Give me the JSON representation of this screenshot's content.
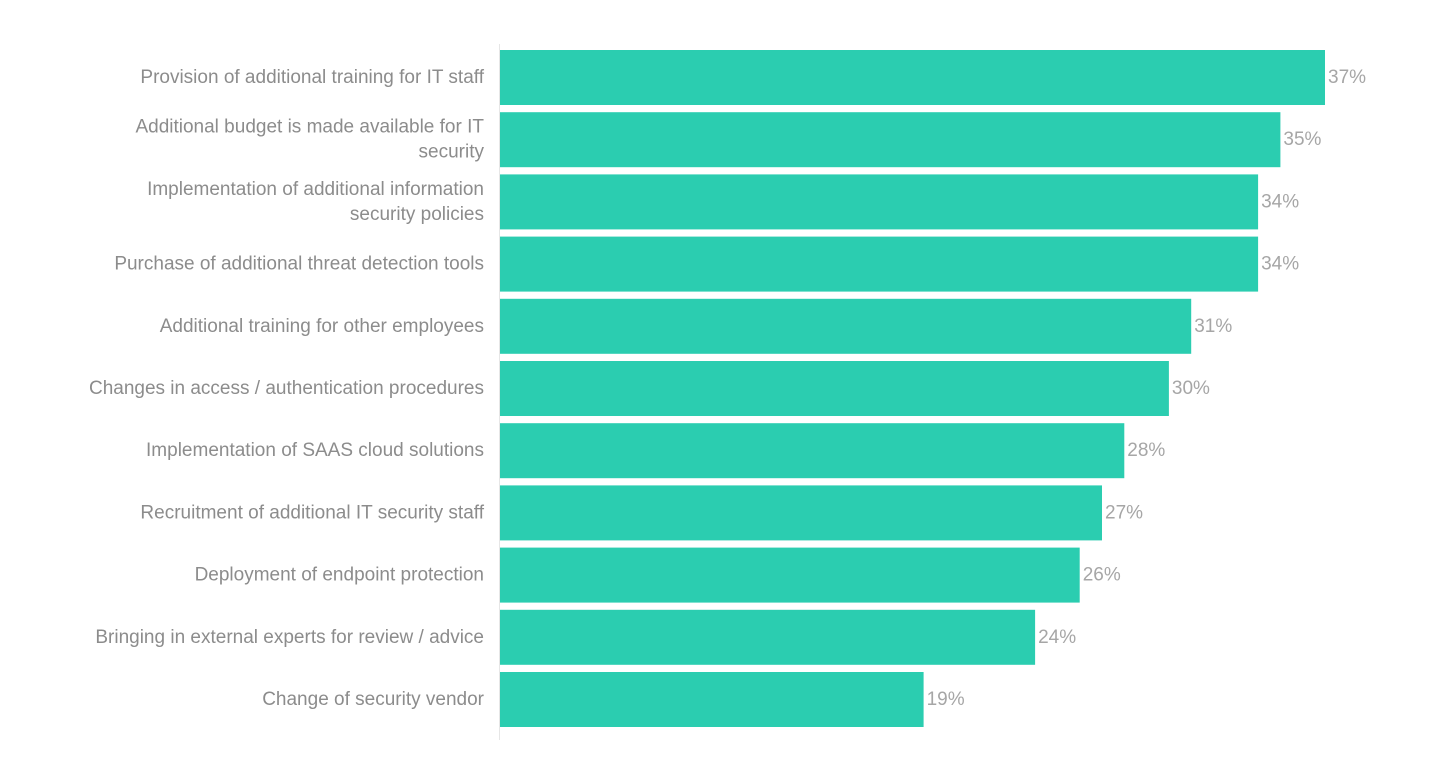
{
  "chart_data": {
    "type": "bar",
    "orientation": "horizontal",
    "title": "",
    "xlabel": "",
    "ylabel": "",
    "xlim": [
      0,
      37
    ],
    "grid": false,
    "legend": "none",
    "bar_color": "#2bcdb0",
    "label_color": "#8c8c8c",
    "value_label_color": "#a6a6a6",
    "categories": [
      "Provision of additional training for IT staff",
      "Additional budget is made available for IT security",
      "Implementation of additional information security policies",
      "Purchase of additional threat detection tools",
      "Additional training for other employees",
      "Changes in access / authentication procedures",
      "Implementation of SAAS cloud solutions",
      "Recruitment of additional IT security staff",
      "Deployment of endpoint protection",
      "Bringing in external experts for review / advice",
      "Change of security vendor"
    ],
    "values": [
      37,
      35,
      34,
      34,
      31,
      30,
      28,
      27,
      26,
      24,
      19
    ],
    "value_labels": [
      "37%",
      "35%",
      "34%",
      "34%",
      "31%",
      "30%",
      "28%",
      "27%",
      "26%",
      "24%",
      "19%"
    ]
  }
}
